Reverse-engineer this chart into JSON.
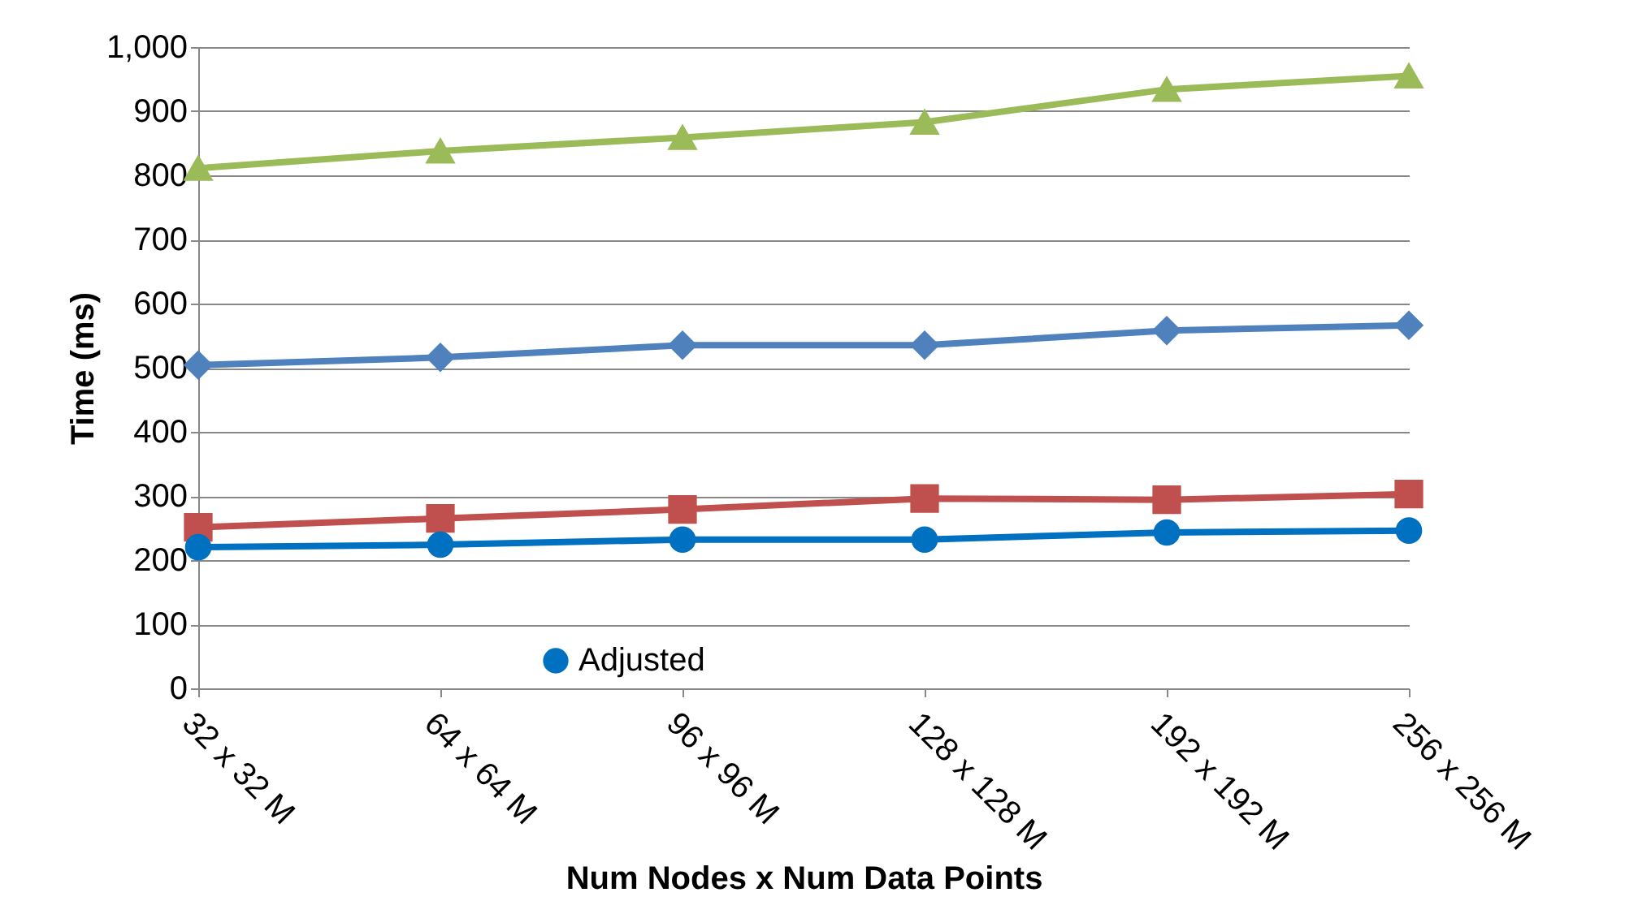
{
  "chart_data": {
    "type": "line",
    "xlabel": "Num Nodes x Num Data Points",
    "ylabel": "Time (ms)",
    "categories": [
      "32 x 32 M",
      "64 x 64 M",
      "96 x 96 M",
      "128 x 128 M",
      "192 x 192 M",
      "256 x 256 M"
    ],
    "series": [
      {
        "color": "#9bbb59",
        "marker": "triangle",
        "values": [
          811,
          838,
          859,
          883,
          934,
          955
        ]
      },
      {
        "color": "#4f81bd",
        "marker": "diamond",
        "values": [
          504,
          516,
          535,
          535,
          558,
          566
        ]
      },
      {
        "color": "#c0504d",
        "marker": "square",
        "values": [
          251,
          265,
          279,
          296,
          294,
          303
        ]
      },
      {
        "name": "Adjusted",
        "color": "#0070c0",
        "marker": "circle",
        "values": [
          220,
          224,
          232,
          232,
          243,
          246
        ]
      }
    ],
    "ylim": [
      0,
      1000
    ],
    "yticks": [
      0,
      100,
      200,
      300,
      400,
      500,
      600,
      700,
      800,
      900,
      {
        "value": 1000,
        "label": "1,000"
      }
    ],
    "grid": "y",
    "legend": "bottom"
  }
}
